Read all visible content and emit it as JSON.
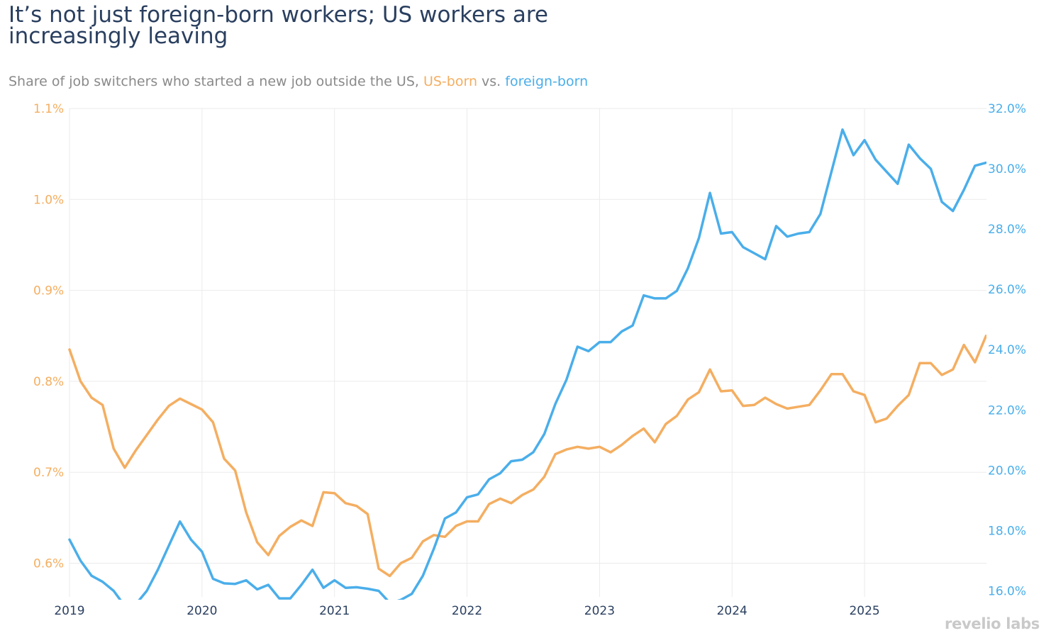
{
  "header": {
    "title": "It’s not just foreign-born workers; US workers are increasingly leaving",
    "subtitle_prefix": "Share of job switchers who started a new job outside the US, ",
    "subtitle_us": "US-born",
    "subtitle_mid": " vs. ",
    "subtitle_fb": "foreign-born"
  },
  "logo": {
    "text": "revelio labs"
  },
  "colors": {
    "us_born": "#f4ae61",
    "foreign_born": "#4aaeea",
    "grid": "#ebebeb",
    "axis_text": "#2a3f5f"
  },
  "chart_data": {
    "type": "line",
    "title": "It’s not just foreign-born workers; US workers are increasingly leaving",
    "subtitle": "Share of job switchers who started a new job outside the US, US-born vs. foreign-born",
    "grid": true,
    "legend": "none",
    "x_ticks": [
      "2019",
      "2020",
      "2021",
      "2022",
      "2023",
      "2024",
      "2025"
    ],
    "x_range": [
      2019.0,
      2025.92
    ],
    "y_left": {
      "unit": "%",
      "range": [
        0.563,
        1.1
      ],
      "ticks": [
        "0.6%",
        "0.7%",
        "0.8%",
        "0.9%",
        "1.0%",
        "1.1%"
      ],
      "tick_values": [
        0.6,
        0.7,
        0.8,
        0.9,
        1.0,
        1.1
      ]
    },
    "y_right": {
      "unit": "%",
      "range": [
        15.8,
        32.0
      ],
      "ticks": [
        "16.0%",
        "18.0%",
        "20.0%",
        "22.0%",
        "24.0%",
        "26.0%",
        "28.0%",
        "30.0%",
        "32.0%"
      ],
      "tick_values": [
        16,
        18,
        20,
        22,
        24,
        26,
        28,
        30,
        32
      ]
    },
    "x_start": "2019-01",
    "x_step": "month",
    "series": [
      {
        "name": "US-born",
        "axis": "left",
        "color": "#f4ae61",
        "values": [
          0.835,
          0.8,
          0.782,
          0.774,
          0.726,
          0.705,
          0.724,
          0.741,
          0.758,
          0.773,
          0.781,
          0.775,
          0.769,
          0.755,
          0.715,
          0.702,
          0.656,
          0.623,
          0.609,
          0.63,
          0.64,
          0.647,
          0.641,
          0.678,
          0.677,
          0.666,
          0.663,
          0.654,
          0.594,
          0.586,
          0.6,
          0.606,
          0.624,
          0.631,
          0.629,
          0.641,
          0.646,
          0.646,
          0.665,
          0.671,
          0.666,
          0.675,
          0.681,
          0.695,
          0.72,
          0.725,
          0.728,
          0.726,
          0.728,
          0.722,
          0.73,
          0.74,
          0.748,
          0.733,
          0.753,
          0.762,
          0.78,
          0.788,
          0.813,
          0.789,
          0.79,
          0.773,
          0.774,
          0.782,
          0.775,
          0.77,
          0.772,
          0.774,
          0.79,
          0.808,
          0.808,
          0.789,
          0.785,
          0.755,
          0.759,
          0.773,
          0.785,
          0.82,
          0.82,
          0.807,
          0.813,
          0.84,
          0.821,
          0.85
        ]
      },
      {
        "name": "foreign-born",
        "axis": "right",
        "color": "#4aaeea",
        "values": [
          17.7,
          17.0,
          16.5,
          16.3,
          16.0,
          15.5,
          15.55,
          16.0,
          16.7,
          17.5,
          18.3,
          17.7,
          17.3,
          16.4,
          16.25,
          16.23,
          16.35,
          16.05,
          16.2,
          15.75,
          15.75,
          16.2,
          16.7,
          16.1,
          16.35,
          16.1,
          16.12,
          16.07,
          16.0,
          15.6,
          15.7,
          15.9,
          16.5,
          17.4,
          18.4,
          18.6,
          19.1,
          19.2,
          19.7,
          19.9,
          20.3,
          20.35,
          20.6,
          21.2,
          22.2,
          23.0,
          24.1,
          23.95,
          24.25,
          24.25,
          24.6,
          24.8,
          25.8,
          25.7,
          25.7,
          25.95,
          26.7,
          27.7,
          29.2,
          27.85,
          27.9,
          27.4,
          27.2,
          27.0,
          28.1,
          27.75,
          27.85,
          27.9,
          28.5,
          29.9,
          31.3,
          30.45,
          30.95,
          30.3,
          29.9,
          29.5,
          30.8,
          30.35,
          30.0,
          28.9,
          28.6,
          29.3,
          30.1,
          30.2
        ]
      }
    ]
  }
}
